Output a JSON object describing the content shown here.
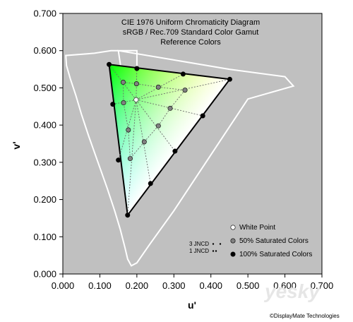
{
  "chart_data": {
    "type": "scatter",
    "title_lines": [
      "CIE 1976 Uniform Chromaticity Diagram",
      "sRGB / Rec.709 Standard Color Gamut",
      "Reference Colors"
    ],
    "xlabel": "u'",
    "ylabel": "v'",
    "xlim": [
      0.0,
      0.7
    ],
    "ylim": [
      0.0,
      0.7
    ],
    "x_ticks": [
      "0.000",
      "0.100",
      "0.200",
      "0.300",
      "0.400",
      "0.500",
      "0.600",
      "0.700"
    ],
    "y_ticks": [
      "0.000",
      "0.100",
      "0.200",
      "0.300",
      "0.400",
      "0.500",
      "0.600",
      "0.700"
    ],
    "background_color": "#c0c0c0",
    "locus_color": "#ffffff",
    "spectral_locus": [
      [
        0.18,
        0.4
      ],
      [
        0.2,
        0.51
      ],
      [
        0.2,
        0.6
      ],
      [
        0.13,
        0.6
      ],
      [
        0.085,
        0.593
      ],
      [
        0.008,
        0.587
      ],
      [
        0.01,
        0.56
      ],
      [
        0.02,
        0.525
      ],
      [
        0.035,
        0.48
      ],
      [
        0.05,
        0.43
      ],
      [
        0.07,
        0.37
      ],
      [
        0.095,
        0.3
      ],
      [
        0.12,
        0.23
      ],
      [
        0.14,
        0.17
      ],
      [
        0.155,
        0.12
      ],
      [
        0.168,
        0.07
      ],
      [
        0.175,
        0.04
      ],
      [
        0.185,
        0.022
      ],
      [
        0.2,
        0.03
      ],
      [
        0.235,
        0.08
      ],
      [
        0.3,
        0.17
      ],
      [
        0.4,
        0.32
      ],
      [
        0.5,
        0.47
      ],
      [
        0.623,
        0.505
      ],
      [
        0.6,
        0.53
      ],
      [
        0.45,
        0.55
      ],
      [
        0.3,
        0.575
      ],
      [
        0.15,
        0.6
      ],
      [
        0.18,
        0.4
      ]
    ],
    "gamut": {
      "red": [
        0.451,
        0.523
      ],
      "green": [
        0.125,
        0.563
      ],
      "blue": [
        0.175,
        0.158
      ]
    },
    "series": [
      {
        "name": "White Point",
        "color": "#ffffff",
        "points": [
          [
            0.198,
            0.468
          ]
        ]
      },
      {
        "name": "50% Saturated Colors",
        "color": "#808080",
        "points": [
          [
            0.163,
            0.515
          ],
          [
            0.199,
            0.511
          ],
          [
            0.258,
            0.502
          ],
          [
            0.33,
            0.494
          ],
          [
            0.164,
            0.46
          ],
          [
            0.29,
            0.445
          ],
          [
            0.258,
            0.398
          ],
          [
            0.177,
            0.387
          ],
          [
            0.22,
            0.355
          ],
          [
            0.182,
            0.31
          ]
        ]
      },
      {
        "name": "100% Saturated Colors",
        "color": "#000000",
        "points": [
          [
            0.125,
            0.563
          ],
          [
            0.2,
            0.552
          ],
          [
            0.325,
            0.537
          ],
          [
            0.451,
            0.523
          ],
          [
            0.378,
            0.425
          ],
          [
            0.303,
            0.33
          ],
          [
            0.237,
            0.243
          ],
          [
            0.175,
            0.158
          ],
          [
            0.15,
            0.306
          ],
          [
            0.135,
            0.456
          ]
        ]
      }
    ],
    "jncd_labels": [
      "3 JNCD",
      "1 JNCD"
    ],
    "legend": {
      "position": "bottom-right",
      "entries": [
        "White Point",
        "50% Saturated Colors",
        "100% Saturated Colors"
      ]
    }
  },
  "watermark": {
    "site": "yesky",
    "chinese": "天极网",
    "credit": "©DisplayMate Technologies"
  }
}
